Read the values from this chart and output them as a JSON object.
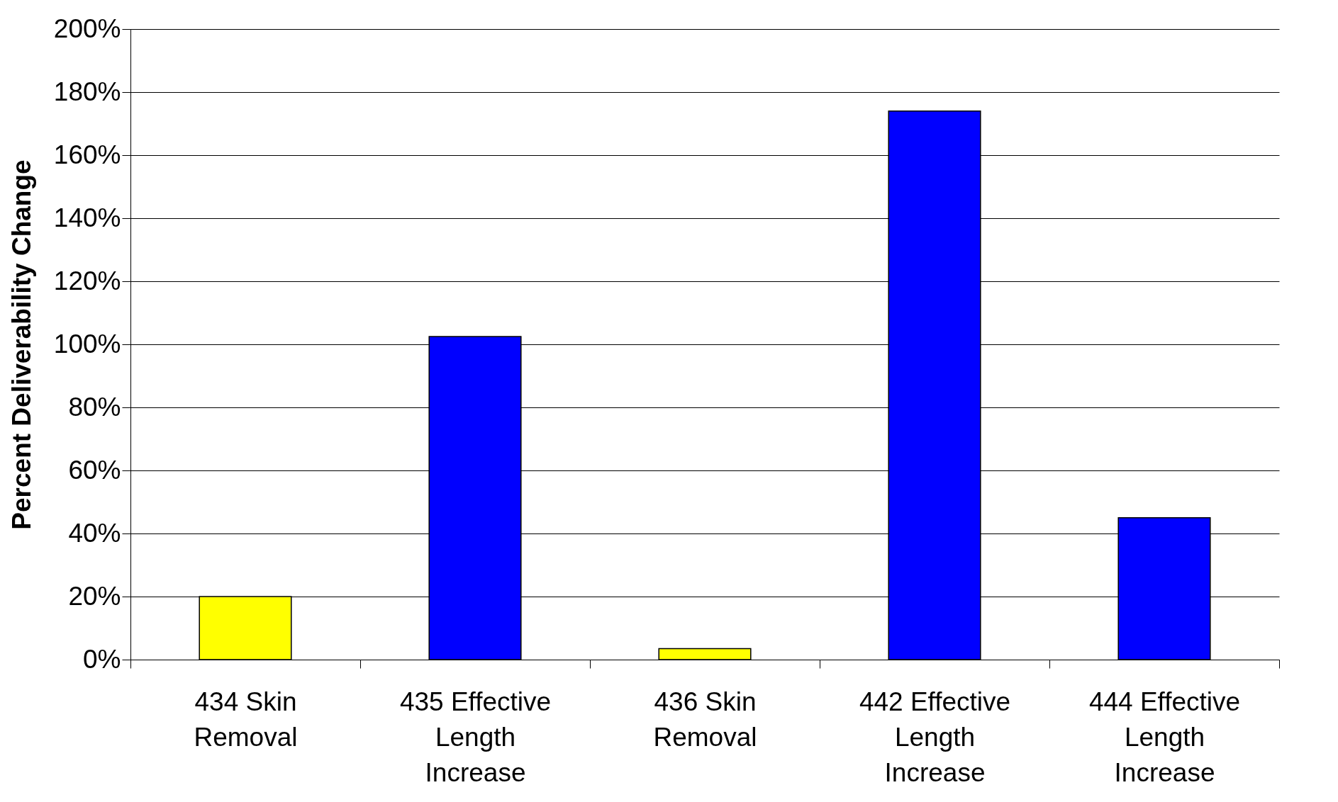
{
  "chart_data": {
    "type": "bar",
    "ylabel": "Percent Deliverability Change",
    "categories": [
      "434 Skin Removal",
      "435 Effective Length Increase",
      "436 Skin Removal",
      "442 Effective Length Increase",
      "444 Effective Length Increase"
    ],
    "values": [
      20,
      102.5,
      3.5,
      174,
      45
    ],
    "colors": [
      "#ffff00",
      "#0000ff",
      "#ffff00",
      "#0000ff",
      "#0000ff"
    ],
    "ylim": [
      0,
      200
    ],
    "yticks": [
      {
        "value": 0,
        "label": "0%"
      },
      {
        "value": 20,
        "label": "20%"
      },
      {
        "value": 40,
        "label": "40%"
      },
      {
        "value": 60,
        "label": "60%"
      },
      {
        "value": 80,
        "label": "80%"
      },
      {
        "value": 100,
        "label": "100%"
      },
      {
        "value": 120,
        "label": "120%"
      },
      {
        "value": 140,
        "label": "140%"
      },
      {
        "value": 160,
        "label": "160%"
      },
      {
        "value": 180,
        "label": "180%"
      },
      {
        "value": 200,
        "label": "200%"
      }
    ],
    "grid": "y"
  }
}
